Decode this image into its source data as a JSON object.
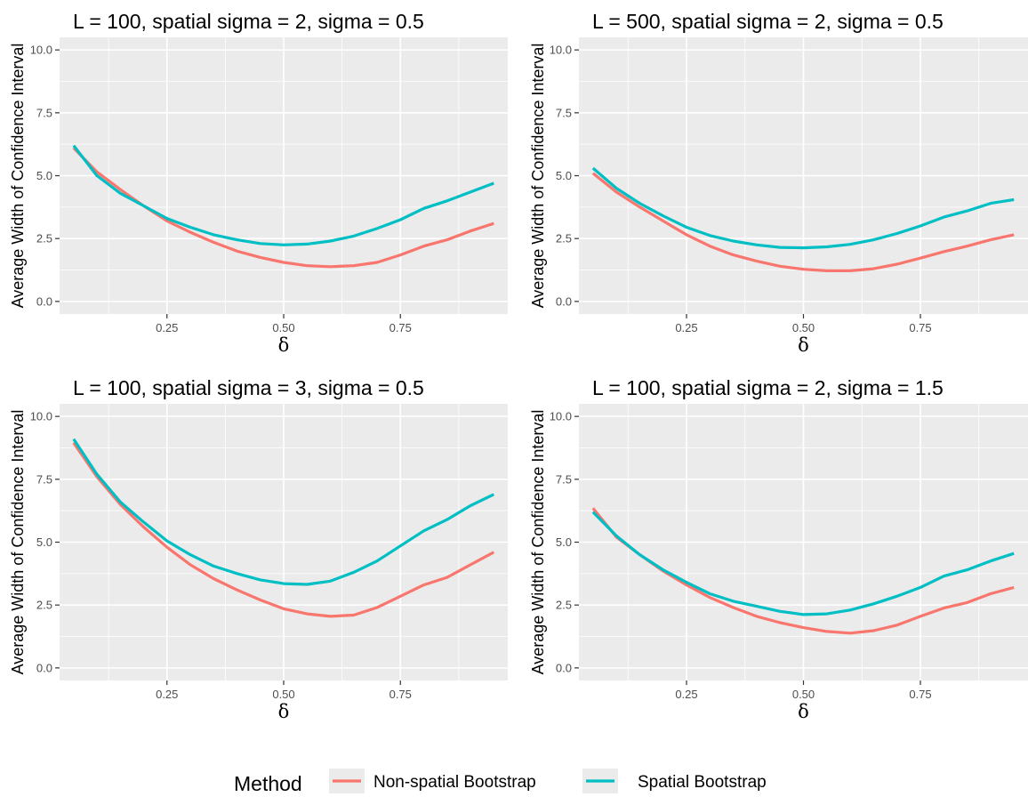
{
  "chart_data": [
    {
      "type": "line",
      "title": "L = 100, spatial sigma = 2, sigma = 0.5",
      "xlabel": "δ",
      "ylabel": "Average Width of Confidence Interval",
      "xlim": [
        0.02,
        0.98
      ],
      "ylim": [
        -0.5,
        10.5
      ],
      "x_ticks": [
        "0.25",
        "0.50",
        "0.75"
      ],
      "y_ticks": [
        "0.0",
        "2.5",
        "5.0",
        "7.5",
        "10.0"
      ],
      "x": [
        0.05,
        0.1,
        0.15,
        0.2,
        0.25,
        0.3,
        0.35,
        0.4,
        0.45,
        0.5,
        0.55,
        0.6,
        0.65,
        0.7,
        0.75,
        0.8,
        0.85,
        0.9,
        0.95
      ],
      "series": [
        {
          "name": "Non-spatial Bootstrap",
          "values": [
            6.1,
            5.15,
            4.45,
            3.8,
            3.2,
            2.75,
            2.35,
            2.0,
            1.75,
            1.55,
            1.42,
            1.38,
            1.42,
            1.55,
            1.85,
            2.2,
            2.45,
            2.8,
            3.1
          ]
        },
        {
          "name": "Spatial Bootstrap",
          "values": [
            6.2,
            5.0,
            4.3,
            3.8,
            3.3,
            2.95,
            2.65,
            2.45,
            2.3,
            2.25,
            2.28,
            2.4,
            2.6,
            2.9,
            3.25,
            3.7,
            4.0,
            4.35,
            4.7
          ]
        }
      ]
    },
    {
      "type": "line",
      "title": "L = 500, spatial sigma = 2, sigma = 0.5",
      "xlabel": "δ",
      "ylabel": "Average Width of Confidence Interval",
      "xlim": [
        0.02,
        0.98
      ],
      "ylim": [
        -0.5,
        10.5
      ],
      "x_ticks": [
        "0.25",
        "0.50",
        "0.75"
      ],
      "y_ticks": [
        "0.0",
        "2.5",
        "5.0",
        "7.5",
        "10.0"
      ],
      "x": [
        0.05,
        0.1,
        0.15,
        0.2,
        0.25,
        0.3,
        0.35,
        0.4,
        0.45,
        0.5,
        0.55,
        0.6,
        0.65,
        0.7,
        0.75,
        0.8,
        0.85,
        0.9,
        0.95
      ],
      "series": [
        {
          "name": "Non-spatial Bootstrap",
          "values": [
            5.1,
            4.35,
            3.75,
            3.2,
            2.65,
            2.2,
            1.85,
            1.6,
            1.4,
            1.28,
            1.22,
            1.22,
            1.3,
            1.48,
            1.72,
            1.98,
            2.2,
            2.45,
            2.65
          ]
        },
        {
          "name": "Spatial Bootstrap",
          "values": [
            5.3,
            4.5,
            3.9,
            3.4,
            2.95,
            2.62,
            2.4,
            2.25,
            2.15,
            2.13,
            2.17,
            2.27,
            2.45,
            2.7,
            3.0,
            3.35,
            3.6,
            3.9,
            4.05
          ]
        }
      ]
    },
    {
      "type": "line",
      "title": "L = 100, spatial sigma = 3, sigma = 0.5",
      "xlabel": "δ",
      "ylabel": "Average Width of Confidence Interval",
      "xlim": [
        0.02,
        0.98
      ],
      "ylim": [
        -0.5,
        10.5
      ],
      "x_ticks": [
        "0.25",
        "0.50",
        "0.75"
      ],
      "y_ticks": [
        "0.0",
        "2.5",
        "5.0",
        "7.5",
        "10.0"
      ],
      "x": [
        0.05,
        0.1,
        0.15,
        0.2,
        0.25,
        0.3,
        0.35,
        0.4,
        0.45,
        0.5,
        0.55,
        0.6,
        0.65,
        0.7,
        0.75,
        0.8,
        0.85,
        0.9,
        0.95
      ],
      "series": [
        {
          "name": "Non-spatial Bootstrap",
          "values": [
            8.95,
            7.6,
            6.5,
            5.6,
            4.8,
            4.1,
            3.55,
            3.1,
            2.7,
            2.35,
            2.15,
            2.05,
            2.1,
            2.4,
            2.85,
            3.3,
            3.6,
            4.1,
            4.6
          ]
        },
        {
          "name": "Spatial Bootstrap",
          "values": [
            9.1,
            7.7,
            6.6,
            5.8,
            5.05,
            4.5,
            4.05,
            3.75,
            3.5,
            3.35,
            3.32,
            3.45,
            3.8,
            4.25,
            4.85,
            5.45,
            5.9,
            6.45,
            6.9
          ]
        }
      ]
    },
    {
      "type": "line",
      "title": "L = 100, spatial sigma = 2, sigma = 1.5",
      "xlabel": "δ",
      "ylabel": "Average Width of Confidence Interval",
      "xlim": [
        0.02,
        0.98
      ],
      "ylim": [
        -0.5,
        10.5
      ],
      "x_ticks": [
        "0.25",
        "0.50",
        "0.75"
      ],
      "y_ticks": [
        "0.0",
        "2.5",
        "5.0",
        "7.5",
        "10.0"
      ],
      "x": [
        0.05,
        0.1,
        0.15,
        0.2,
        0.25,
        0.3,
        0.35,
        0.4,
        0.45,
        0.5,
        0.55,
        0.6,
        0.65,
        0.7,
        0.75,
        0.8,
        0.85,
        0.9,
        0.95
      ],
      "series": [
        {
          "name": "Non-spatial Bootstrap",
          "values": [
            6.35,
            5.2,
            4.5,
            3.85,
            3.3,
            2.8,
            2.4,
            2.05,
            1.8,
            1.6,
            1.45,
            1.38,
            1.48,
            1.7,
            2.05,
            2.38,
            2.6,
            2.95,
            3.2
          ]
        },
        {
          "name": "Spatial Bootstrap",
          "values": [
            6.2,
            5.25,
            4.5,
            3.9,
            3.4,
            2.95,
            2.65,
            2.45,
            2.25,
            2.12,
            2.15,
            2.3,
            2.55,
            2.85,
            3.2,
            3.65,
            3.9,
            4.25,
            4.55
          ]
        }
      ]
    }
  ],
  "legend": {
    "title": "Method",
    "position": "bottom",
    "items": [
      {
        "label": "Non-spatial Bootstrap",
        "color": "#f8766d"
      },
      {
        "label": "Spatial Bootstrap",
        "color": "#00bfc4"
      }
    ]
  },
  "style": {
    "panel_background": "#ebebeb",
    "grid_color": "#ffffff",
    "series_colors": [
      "#f8766d",
      "#00bfc4"
    ]
  }
}
